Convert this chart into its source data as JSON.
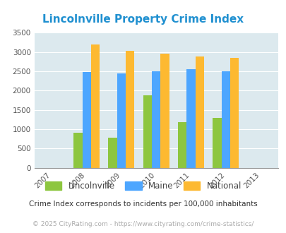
{
  "title": "Lincolnville Property Crime Index",
  "years": [
    2007,
    2008,
    2009,
    2010,
    2011,
    2012,
    2013
  ],
  "data_years": [
    2008,
    2009,
    2010,
    2011,
    2012
  ],
  "lincolnville": [
    900,
    775,
    1875,
    1190,
    1290
  ],
  "maine": [
    2475,
    2440,
    2495,
    2560,
    2505
  ],
  "national": [
    3200,
    3035,
    2950,
    2880,
    2850
  ],
  "bar_colors": {
    "lincolnville": "#8dc63f",
    "maine": "#4da6ff",
    "national": "#fdb931"
  },
  "ylim": [
    0,
    3500
  ],
  "yticks": [
    0,
    500,
    1000,
    1500,
    2000,
    2500,
    3000,
    3500
  ],
  "background_color": "#dce9ee",
  "grid_color": "#c8d8e0",
  "title_color": "#2090d0",
  "legend_labels": [
    "Lincolnville",
    "Maine",
    "National"
  ],
  "footnote1": "Crime Index corresponds to incidents per 100,000 inhabitants",
  "footnote2": "© 2025 CityRating.com - https://www.cityrating.com/crime-statistics/",
  "bar_width": 0.25
}
